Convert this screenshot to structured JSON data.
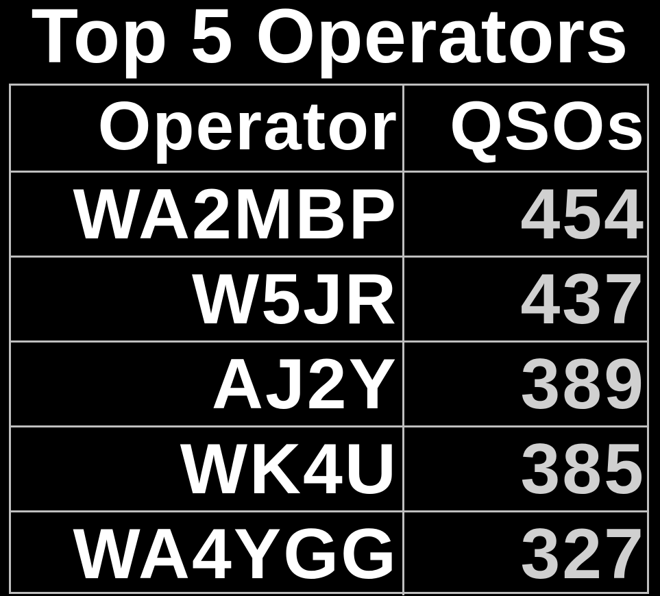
{
  "title": "Top 5 Operators",
  "table": {
    "columns": [
      "Operator",
      "QSOs"
    ],
    "rows": [
      {
        "operator": "WA2MBP",
        "qsos": "454"
      },
      {
        "operator": "W5JR",
        "qsos": "437"
      },
      {
        "operator": "AJ2Y",
        "qsos": "389"
      },
      {
        "operator": "WK4U",
        "qsos": "385"
      },
      {
        "operator": "WA4YGG",
        "qsos": "327"
      }
    ]
  },
  "colors": {
    "background": "#000000",
    "text": "#ffffff",
    "value_text": "#d0d0d0",
    "grid": "#bfbfbf"
  }
}
